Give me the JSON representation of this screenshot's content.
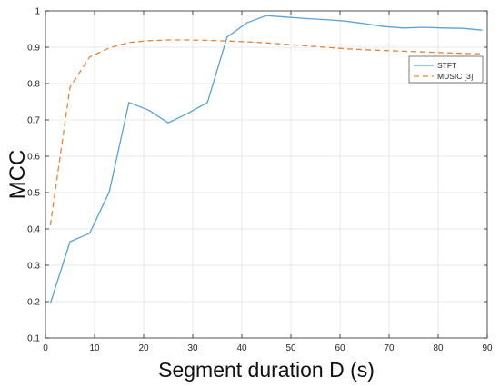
{
  "chart_data": {
    "type": "line",
    "xlabel": "Segment duration D (s)",
    "ylabel": "MCC",
    "xlim": [
      0,
      90
    ],
    "ylim": [
      0.1,
      1.0
    ],
    "xticks": [
      "0",
      "10",
      "20",
      "30",
      "40",
      "50",
      "60",
      "70",
      "80",
      "90"
    ],
    "yticks": [
      "0.1",
      "0.2",
      "0.3",
      "0.4",
      "0.5",
      "0.6",
      "0.7",
      "0.8",
      "0.9",
      "1"
    ],
    "grid": true,
    "legend_position": "top-right",
    "series": [
      {
        "name": "STFT",
        "color": "#5aa2d4",
        "style": "solid",
        "x": [
          1,
          5,
          9,
          13,
          17,
          21,
          25,
          29,
          33,
          37,
          41,
          45,
          49,
          53,
          57,
          61,
          65,
          69,
          73,
          77,
          81,
          85,
          89
        ],
        "y": [
          0.195,
          0.365,
          0.388,
          0.502,
          0.748,
          0.727,
          0.692,
          0.718,
          0.748,
          0.928,
          0.967,
          0.987,
          0.983,
          0.979,
          0.976,
          0.972,
          0.965,
          0.957,
          0.953,
          0.955,
          0.953,
          0.952,
          0.947
        ]
      },
      {
        "name": "MUSIC [3]",
        "color": "#e8833a",
        "style": "dashed",
        "x": [
          1,
          5,
          9,
          13,
          17,
          21,
          25,
          29,
          33,
          37,
          41,
          45,
          49,
          53,
          57,
          61,
          65,
          69,
          73,
          77,
          81,
          85,
          89
        ],
        "y": [
          0.41,
          0.79,
          0.873,
          0.898,
          0.913,
          0.918,
          0.92,
          0.92,
          0.919,
          0.917,
          0.915,
          0.912,
          0.908,
          0.904,
          0.9,
          0.896,
          0.893,
          0.891,
          0.889,
          0.887,
          0.885,
          0.883,
          0.882
        ]
      }
    ]
  }
}
